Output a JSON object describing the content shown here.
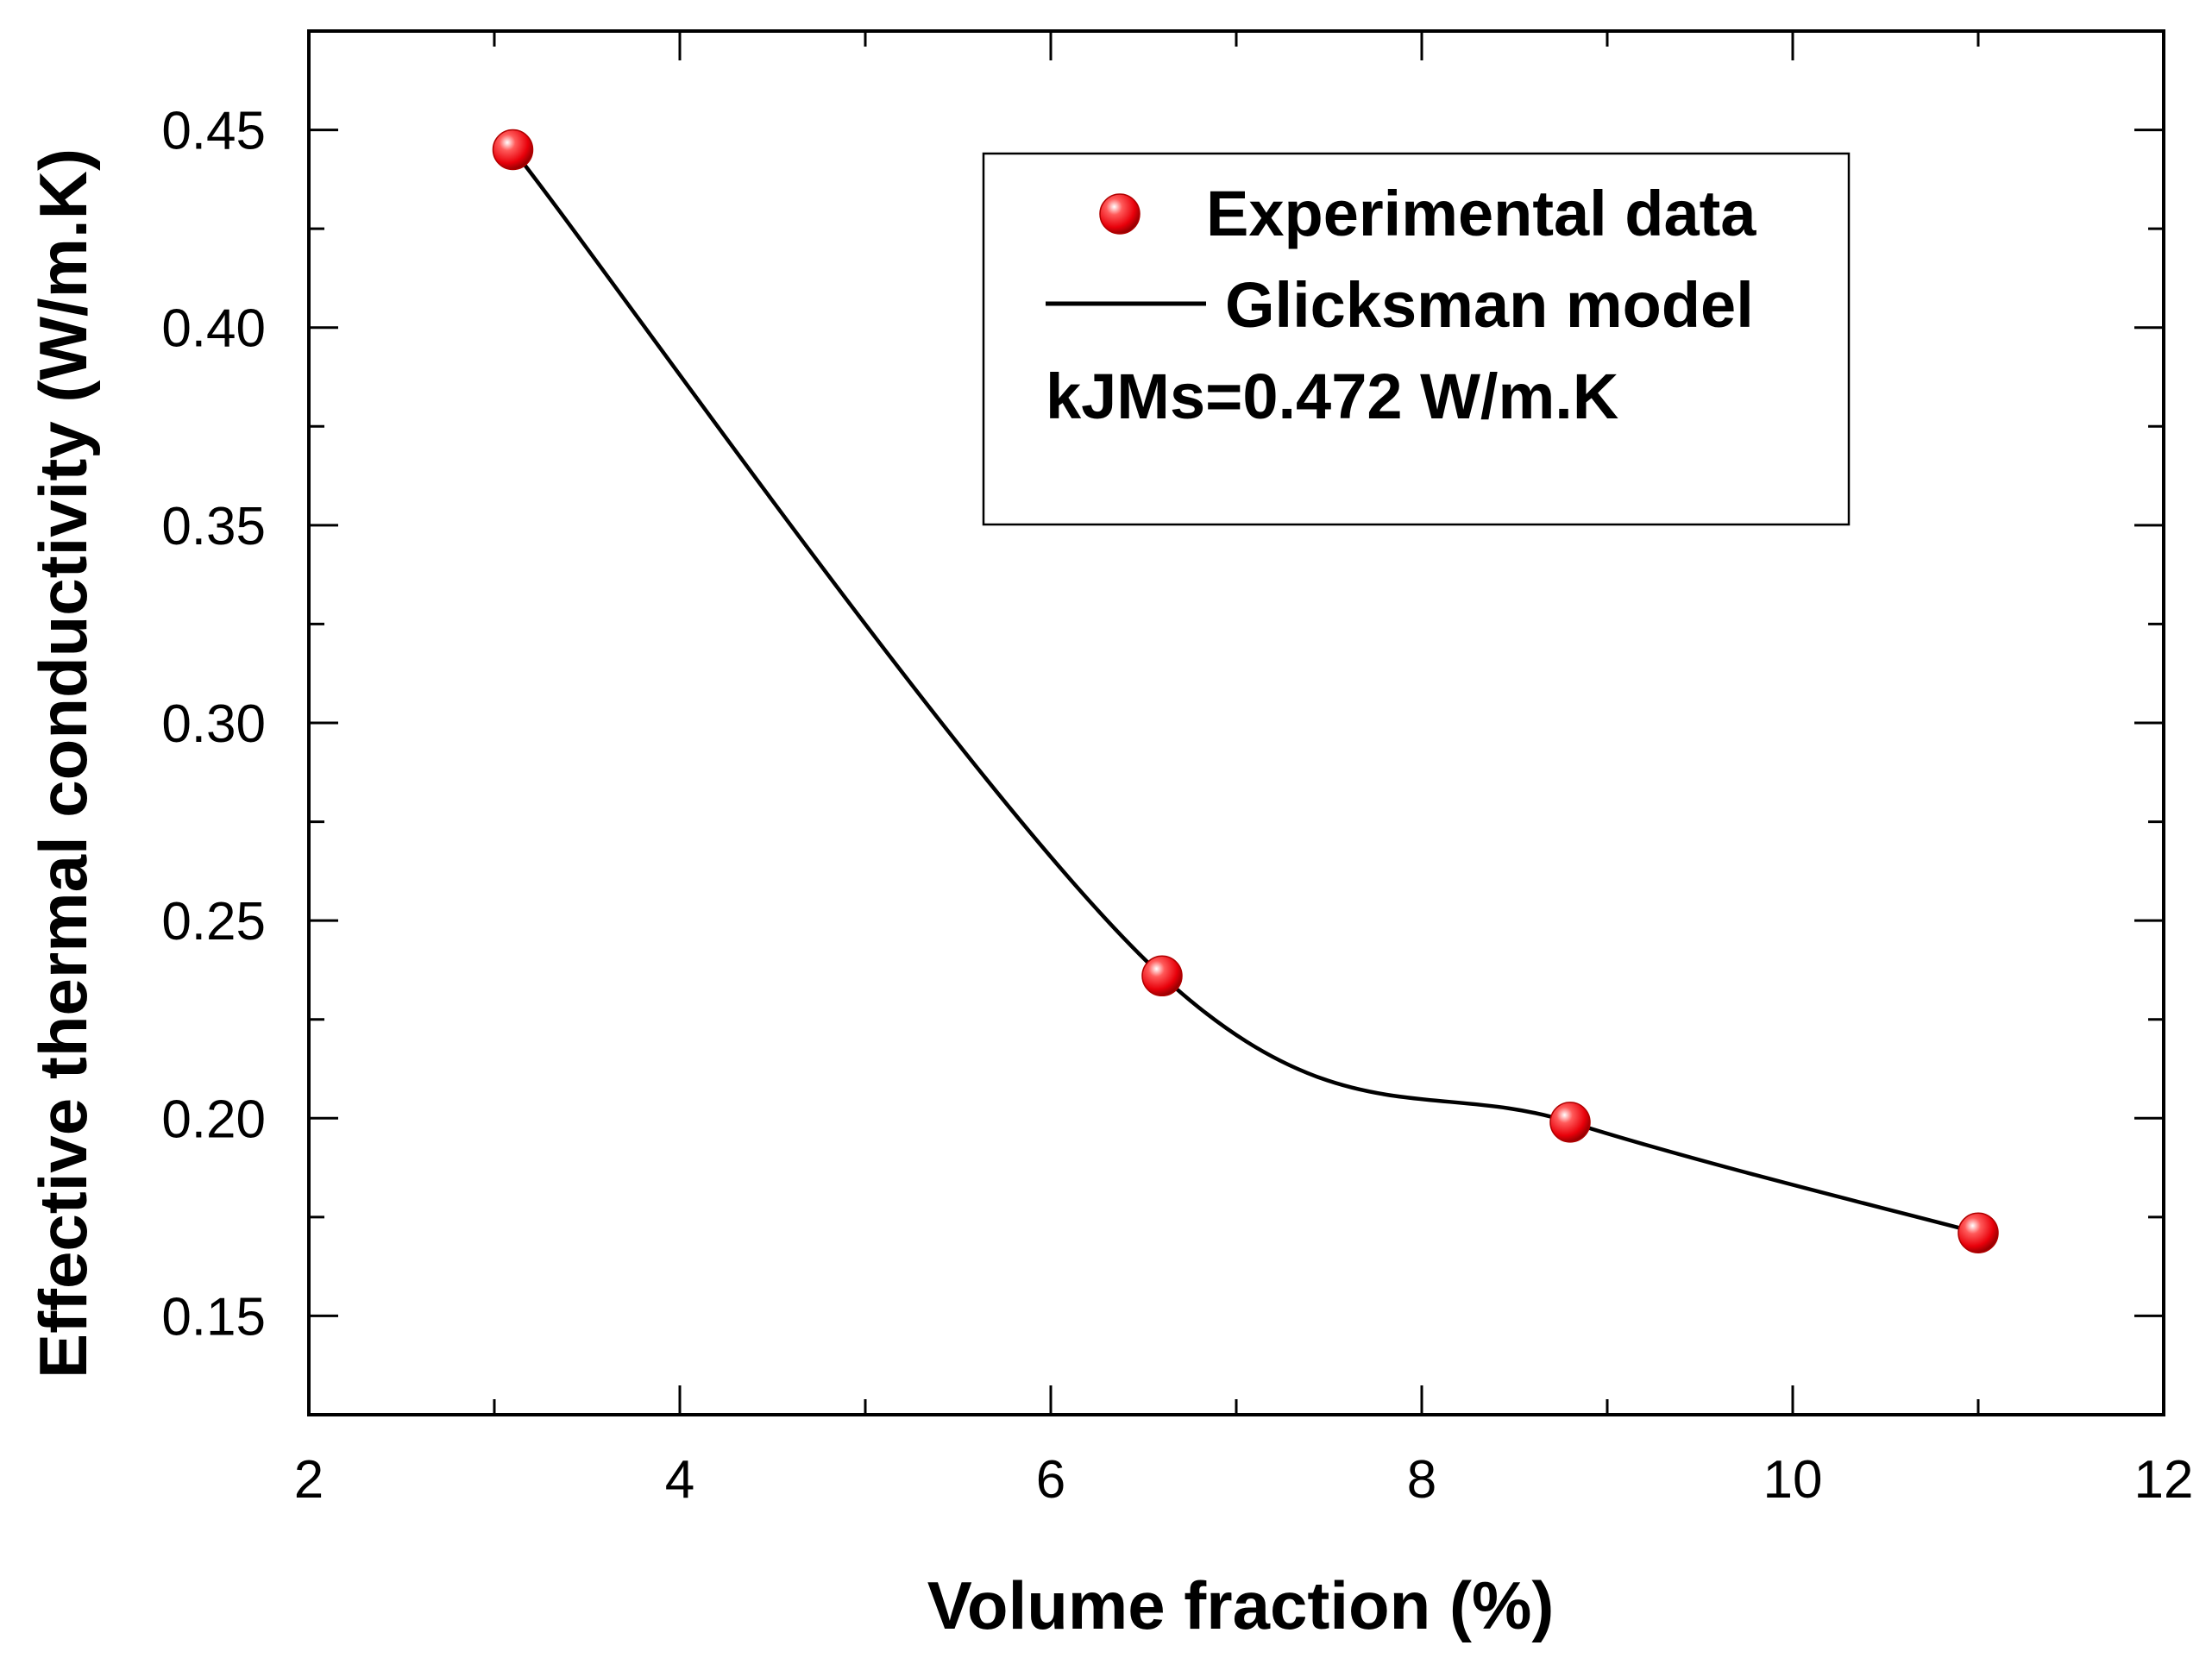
{
  "chart_data": {
    "type": "line",
    "title": "",
    "xlabel": "Volume fraction (%)",
    "ylabel": "Effective thermal conductivity (W/m.K)",
    "xlim": [
      2,
      12
    ],
    "ylim": [
      0.125,
      0.475
    ],
    "xticks": [
      2,
      4,
      6,
      8,
      10,
      12
    ],
    "yticks": [
      0.15,
      0.2,
      0.25,
      0.3,
      0.35,
      0.4,
      0.45
    ],
    "xtick_labels": [
      "2",
      "4",
      "6",
      "8",
      "10",
      "12"
    ],
    "ytick_labels": [
      "0.15",
      "0.20",
      "0.25",
      "0.30",
      "0.35",
      "0.40",
      "0.45"
    ],
    "grid": false,
    "legend_position": "top-right",
    "series": [
      {
        "name": "Experimental data",
        "kind": "scatter",
        "color": "#e8000a",
        "x": [
          3.1,
          6.6,
          8.8,
          11.0
        ],
        "y": [
          0.445,
          0.236,
          0.199,
          0.171
        ]
      },
      {
        "name": "Glicksman model",
        "kind": "line",
        "color": "#000000",
        "x": [
          3.1,
          6.6,
          8.8,
          11.0
        ],
        "y": [
          0.445,
          0.236,
          0.199,
          0.171
        ]
      }
    ],
    "annotation": "kJMs=0.472 W/m.K"
  },
  "colors": {
    "axis": "#000000",
    "marker": "#e8000a",
    "line": "#000000"
  }
}
